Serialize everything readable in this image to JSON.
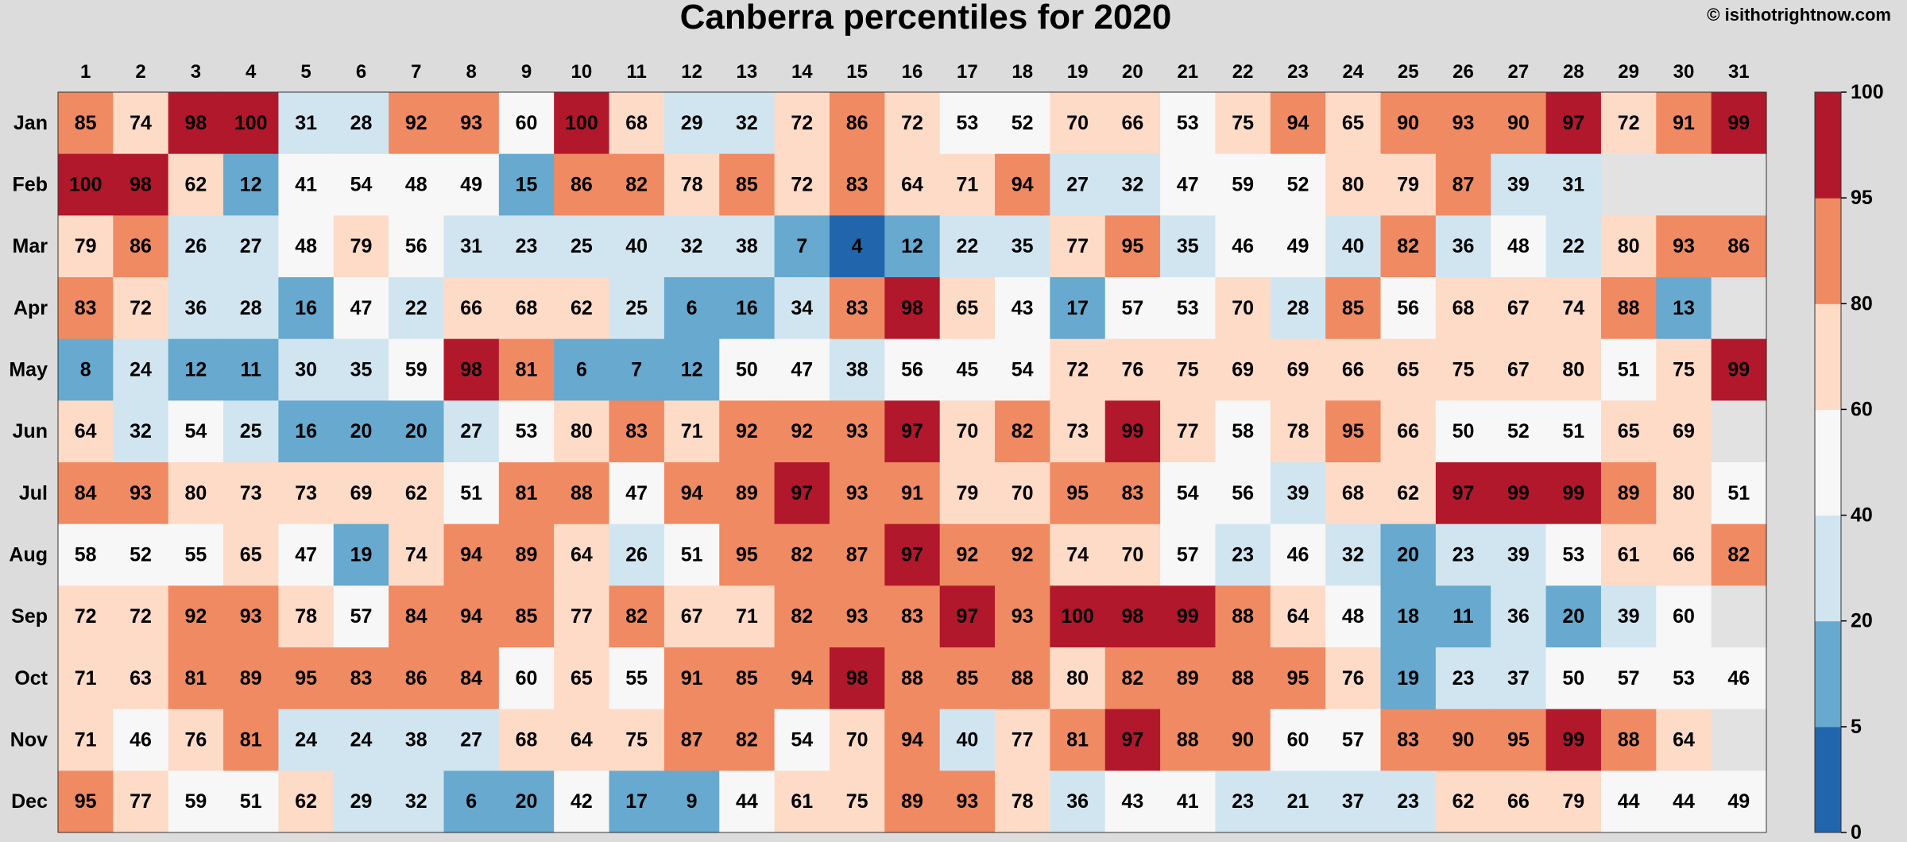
{
  "chart_data": {
    "type": "heatmap",
    "title": "Canberra percentiles for 2020",
    "copyright": "© isithotrightnow.com",
    "x_categories": [
      "1",
      "2",
      "3",
      "4",
      "5",
      "6",
      "7",
      "8",
      "9",
      "10",
      "11",
      "12",
      "13",
      "14",
      "15",
      "16",
      "17",
      "18",
      "19",
      "20",
      "21",
      "22",
      "23",
      "24",
      "25",
      "26",
      "27",
      "28",
      "29",
      "30",
      "31"
    ],
    "y_categories": [
      "Jan",
      "Feb",
      "Mar",
      "Apr",
      "May",
      "Jun",
      "Jul",
      "Aug",
      "Sep",
      "Oct",
      "Nov",
      "Dec"
    ],
    "values": [
      [
        85,
        74,
        98,
        100,
        31,
        28,
        92,
        93,
        60,
        100,
        68,
        29,
        32,
        72,
        86,
        72,
        53,
        52,
        70,
        66,
        53,
        75,
        94,
        65,
        90,
        93,
        90,
        97,
        72,
        91,
        99
      ],
      [
        100,
        98,
        62,
        12,
        41,
        54,
        48,
        49,
        15,
        86,
        82,
        78,
        85,
        72,
        83,
        64,
        71,
        94,
        27,
        32,
        47,
        59,
        52,
        80,
        79,
        87,
        39,
        31,
        null,
        null,
        null
      ],
      [
        79,
        86,
        26,
        27,
        48,
        79,
        56,
        31,
        23,
        25,
        40,
        32,
        38,
        7,
        4,
        12,
        22,
        35,
        77,
        95,
        35,
        46,
        49,
        40,
        82,
        36,
        48,
        22,
        80,
        93,
        86
      ],
      [
        83,
        72,
        36,
        28,
        16,
        47,
        22,
        66,
        68,
        62,
        25,
        6,
        16,
        34,
        83,
        98,
        65,
        43,
        17,
        57,
        53,
        70,
        28,
        85,
        56,
        68,
        67,
        74,
        88,
        13,
        null
      ],
      [
        8,
        24,
        12,
        11,
        30,
        35,
        59,
        98,
        81,
        6,
        7,
        12,
        50,
        47,
        38,
        56,
        45,
        54,
        72,
        76,
        75,
        69,
        69,
        66,
        65,
        75,
        67,
        80,
        51,
        75,
        99
      ],
      [
        64,
        32,
        54,
        25,
        16,
        20,
        20,
        27,
        53,
        80,
        83,
        71,
        92,
        92,
        93,
        97,
        70,
        82,
        73,
        99,
        77,
        58,
        78,
        95,
        66,
        50,
        52,
        51,
        65,
        69,
        null
      ],
      [
        84,
        93,
        80,
        73,
        73,
        69,
        62,
        51,
        81,
        88,
        47,
        94,
        89,
        97,
        93,
        91,
        79,
        70,
        95,
        83,
        54,
        56,
        39,
        68,
        62,
        97,
        99,
        99,
        89,
        80,
        51
      ],
      [
        58,
        52,
        55,
        65,
        47,
        19,
        74,
        94,
        89,
        64,
        26,
        51,
        95,
        82,
        87,
        97,
        92,
        92,
        74,
        70,
        57,
        23,
        46,
        32,
        20,
        23,
        39,
        53,
        61,
        66,
        82
      ],
      [
        72,
        72,
        92,
        93,
        78,
        57,
        84,
        94,
        85,
        77,
        82,
        67,
        71,
        82,
        93,
        83,
        97,
        93,
        100,
        98,
        99,
        88,
        64,
        48,
        18,
        11,
        36,
        20,
        39,
        60,
        null
      ],
      [
        71,
        63,
        81,
        89,
        95,
        83,
        86,
        84,
        60,
        65,
        55,
        91,
        85,
        94,
        98,
        88,
        85,
        88,
        80,
        82,
        89,
        88,
        95,
        76,
        19,
        23,
        37,
        50,
        57,
        53,
        46
      ],
      [
        71,
        46,
        76,
        81,
        24,
        24,
        38,
        27,
        68,
        64,
        75,
        87,
        82,
        54,
        70,
        94,
        40,
        77,
        81,
        97,
        88,
        90,
        60,
        57,
        83,
        90,
        95,
        99,
        88,
        64,
        null
      ],
      [
        95,
        77,
        59,
        51,
        62,
        29,
        32,
        6,
        20,
        42,
        17,
        9,
        44,
        61,
        75,
        89,
        93,
        78,
        36,
        43,
        41,
        23,
        21,
        37,
        23,
        62,
        66,
        79,
        44,
        44,
        49
      ]
    ],
    "colorbar": {
      "ticks": [
        0,
        5,
        20,
        40,
        60,
        80,
        95,
        100
      ],
      "bins": [
        {
          "from": 0,
          "to": 5,
          "color": "#2166ac"
        },
        {
          "from": 5,
          "to": 20,
          "color": "#67a9cf"
        },
        {
          "from": 20,
          "to": 40,
          "color": "#d1e5f0"
        },
        {
          "from": 40,
          "to": 60,
          "color": "#f7f7f7"
        },
        {
          "from": 60,
          "to": 80,
          "color": "#fddbc7"
        },
        {
          "from": 80,
          "to": 95,
          "color": "#ef8a62"
        },
        {
          "from": 95,
          "to": 100,
          "color": "#b2182b"
        }
      ]
    },
    "missing_color": "#e2e2e2",
    "background_color": "#dcdcdc"
  }
}
